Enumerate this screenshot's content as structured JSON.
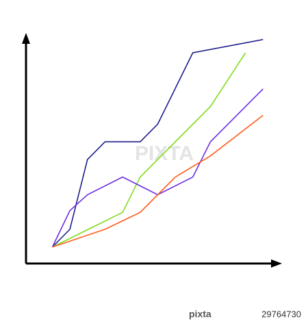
{
  "chart_data": {
    "type": "line",
    "xlim": [
      -1.5,
      13
    ],
    "ylim": [
      0,
      13
    ],
    "series": [
      {
        "color": "#1c1c8a",
        "x": [
          0,
          1,
          2,
          3,
          5,
          6,
          8,
          12
        ],
        "values": [
          0.93,
          1.94,
          5.9,
          6.9,
          6.9,
          7.9,
          11.95,
          12.7
        ]
      },
      {
        "color": "#7fdc1e",
        "x": [
          0,
          4,
          5,
          9,
          11
        ],
        "values": [
          0.93,
          2.9,
          4.9,
          8.9,
          11.95
        ]
      },
      {
        "color": "#6a2ae0",
        "x": [
          0,
          1,
          2,
          4,
          6,
          8,
          9,
          11,
          12
        ],
        "values": [
          0.93,
          3.0,
          3.9,
          4.9,
          3.9,
          4.9,
          6.9,
          8.9,
          9.9
        ]
      },
      {
        "color": "#ff5a1a",
        "x": [
          0,
          3,
          5,
          7,
          9,
          12
        ],
        "values": [
          0.93,
          1.94,
          2.9,
          4.9,
          6.1,
          8.4
        ]
      }
    ]
  },
  "watermark": "PIXTA",
  "footer": {
    "logo": "pixta",
    "id": "29764730"
  }
}
